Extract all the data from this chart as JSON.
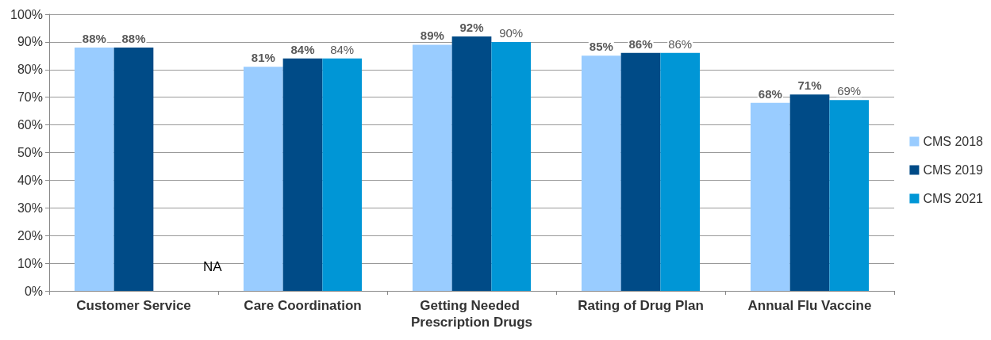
{
  "chart_data": {
    "type": "bar",
    "categories": [
      "Customer Service",
      "Care Coordination",
      "Getting Needed Prescription Drugs",
      "Rating of Drug Plan",
      "Annual Flu Vaccine"
    ],
    "series": [
      {
        "name": "CMS 2018",
        "color": "#99ccff",
        "values": [
          88,
          81,
          89,
          85,
          68
        ],
        "value_labels": [
          "88%",
          "81%",
          "89%",
          "85%",
          "68%"
        ]
      },
      {
        "name": "CMS 2019",
        "color": "#004b87",
        "values": [
          88,
          84,
          92,
          86,
          71
        ],
        "value_labels": [
          "88%",
          "84%",
          "92%",
          "86%",
          "71%"
        ]
      },
      {
        "name": "CMS 2021",
        "color": "#0096d6",
        "values": [
          null,
          84,
          90,
          86,
          69
        ],
        "value_labels": [
          "NA",
          "84%",
          "90%",
          "86%",
          "69%"
        ]
      }
    ],
    "ylim": [
      0,
      100
    ],
    "yticks": [
      {
        "value": 0,
        "label": "0%"
      },
      {
        "value": 10,
        "label": "10%"
      },
      {
        "value": 20,
        "label": "20%"
      },
      {
        "value": 30,
        "label": "30%"
      },
      {
        "value": 40,
        "label": "40%"
      },
      {
        "value": 50,
        "label": "50%"
      },
      {
        "value": 60,
        "label": "60%"
      },
      {
        "value": 70,
        "label": "70%"
      },
      {
        "value": 80,
        "label": "80%"
      },
      {
        "value": 90,
        "label": "90%"
      },
      {
        "value": 100,
        "label": "100%"
      }
    ],
    "grid": "y",
    "legend": "right"
  }
}
